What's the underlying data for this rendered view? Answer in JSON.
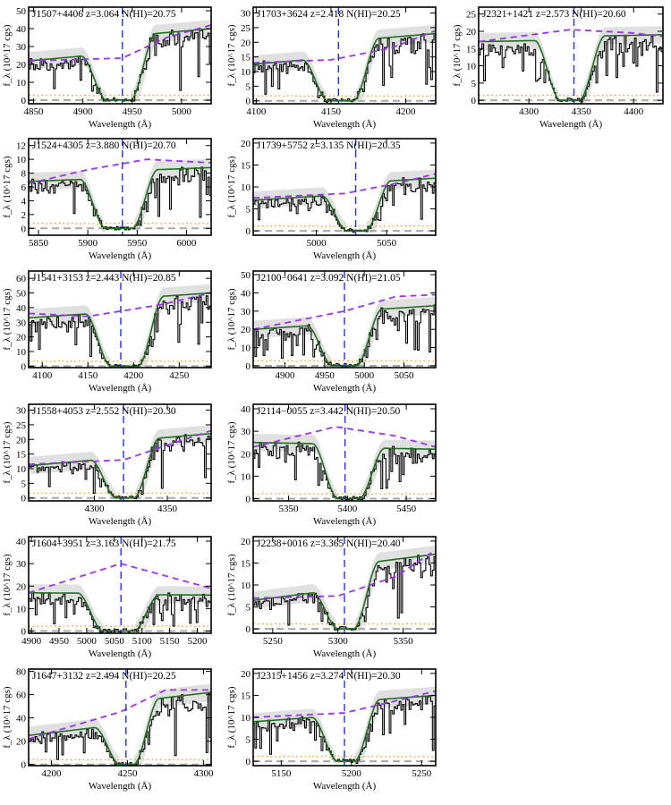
{
  "figure": {
    "xlabel": "Wavelength (Å)",
    "ylabel": "f_λ (10^17 cgs)"
  },
  "colors": {
    "flux": "#000000",
    "model": "#1f6f1f",
    "model_uncertainty_band": "#cfcfcf",
    "continuum": "#9933ee",
    "error": "#f0a030",
    "zero_level": "#a8a8a8",
    "absorber_redshift": "#2030e0"
  },
  "chart_data": [
    {
      "type": "line",
      "title": "J1507+4406 z=3.064 N(HI)=20.75",
      "xlim": [
        4845,
        5030
      ],
      "ylim": [
        -2,
        52
      ],
      "xticks": [
        4850,
        4900,
        4950,
        5000
      ],
      "yticks": [
        0,
        10,
        20,
        30,
        40,
        50
      ],
      "z_line_x": 4940,
      "trough": [
        4924,
        4948
      ],
      "model_left": 22,
      "model_right": 40,
      "continuum": [
        [
          4845,
          22
        ],
        [
          4940,
          23.5
        ],
        [
          4985,
          35
        ],
        [
          5030,
          42
        ]
      ],
      "grid": false
    },
    {
      "type": "line",
      "title": "J1703+3624 z=2.418 N(HI)=20.25",
      "xlim": [
        4098,
        4220
      ],
      "ylim": [
        -1,
        32
      ],
      "xticks": [
        4100,
        4150,
        4200
      ],
      "yticks": [
        0,
        5,
        10,
        15,
        20,
        25,
        30
      ],
      "z_line_x": 4155,
      "trough": [
        4148,
        4165
      ],
      "model_left": 12.5,
      "model_right": 23,
      "continuum": [
        [
          4098,
          13
        ],
        [
          4150,
          14
        ],
        [
          4190,
          18
        ],
        [
          4220,
          24
        ]
      ],
      "grid": false
    },
    {
      "type": "line",
      "title": "J2321+1421 z=2.573 N(HI)=20.60",
      "xlim": [
        4252,
        4428
      ],
      "ylim": [
        -1,
        27
      ],
      "xticks": [
        4300,
        4350,
        4400
      ],
      "yticks": [
        0,
        5,
        10,
        15,
        20,
        25
      ],
      "z_line_x": 4343,
      "trough": [
        4330,
        4348
      ],
      "model_left": 17,
      "model_right": 19,
      "continuum": [
        [
          4252,
          17
        ],
        [
          4340,
          20.5
        ],
        [
          4400,
          19.5
        ],
        [
          4428,
          18.5
        ]
      ],
      "grid": false
    },
    {
      "type": "line",
      "title": "J1524+4305 z=3.880 N(HI)=20.70",
      "xlim": [
        5840,
        6025
      ],
      "ylim": [
        -1,
        13
      ],
      "xticks": [
        5850,
        5900,
        5950,
        6000
      ],
      "yticks": [
        0,
        2,
        4,
        6,
        8,
        10,
        12
      ],
      "z_line_x": 5935,
      "trough": [
        5918,
        5945
      ],
      "model_left": 6.8,
      "model_right": 8.8,
      "continuum": [
        [
          5840,
          6.5
        ],
        [
          5900,
          8.5
        ],
        [
          5960,
          10
        ],
        [
          6025,
          9.5
        ]
      ],
      "grid": false
    },
    {
      "type": "line",
      "title": "J1739+5752 z=3.135 N(HI)=20.35",
      "xlim": [
        4955,
        5085
      ],
      "ylim": [
        -1,
        21
      ],
      "xticks": [
        5000,
        5050
      ],
      "yticks": [
        0,
        5,
        10,
        15,
        20
      ],
      "z_line_x": 5028,
      "trough": [
        5022,
        5035
      ],
      "model_left": 7,
      "model_right": 12,
      "continuum": [
        [
          4955,
          7.5
        ],
        [
          5020,
          8.5
        ],
        [
          5060,
          11
        ],
        [
          5085,
          13
        ]
      ],
      "grid": false
    },
    {
      "type": "line",
      "title": "J1541+3153 z=2.443 N(HI)=20.85",
      "xlim": [
        4085,
        4285
      ],
      "ylim": [
        -1,
        65
      ],
      "xticks": [
        4100,
        4150,
        4200,
        4250
      ],
      "yticks": [
        0,
        10,
        20,
        30,
        40,
        50,
        60
      ],
      "z_line_x": 4186,
      "trough": [
        4175,
        4205
      ],
      "model_left": 33,
      "model_right": 50,
      "continuum": [
        [
          4085,
          36
        ],
        [
          4150,
          34
        ],
        [
          4230,
          42
        ],
        [
          4285,
          50
        ]
      ],
      "grid": false
    },
    {
      "type": "line",
      "title": "J2100−0641 z=3.092 N(HI)=21.05",
      "xlim": [
        4860,
        5090
      ],
      "ylim": [
        -1,
        52
      ],
      "xticks": [
        4900,
        4950,
        5000,
        5050
      ],
      "yticks": [
        0,
        10,
        20,
        30,
        40,
        50
      ],
      "z_line_x": 4975,
      "trough": [
        4960,
        4990
      ],
      "model_left": 20,
      "model_right": 33,
      "continuum": [
        [
          4860,
          20
        ],
        [
          4975,
          30
        ],
        [
          5040,
          38
        ],
        [
          5090,
          39
        ]
      ],
      "grid": false
    },
    {
      "type": "line",
      "title": "J1558+4053 z=2.552 N(HI)=20.30",
      "xlim": [
        4255,
        4380
      ],
      "ylim": [
        -1,
        32
      ],
      "xticks": [
        4300,
        4350
      ],
      "yticks": [
        0,
        5,
        10,
        15,
        20,
        25,
        30
      ],
      "z_line_x": 4320,
      "trough": [
        4315,
        4327
      ],
      "model_left": 11,
      "model_right": 22,
      "continuum": [
        [
          4255,
          11.5
        ],
        [
          4320,
          13
        ],
        [
          4350,
          18
        ],
        [
          4380,
          23
        ]
      ],
      "grid": false
    },
    {
      "type": "line",
      "title": "J2114−0055 z=3.442 N(HI)=20.50",
      "xlim": [
        5320,
        5475
      ],
      "ylim": [
        -1,
        42
      ],
      "xticks": [
        5350,
        5400,
        5450
      ],
      "yticks": [
        0,
        10,
        20,
        30,
        40
      ],
      "z_line_x": 5398,
      "trough": [
        5392,
        5410
      ],
      "model_left": 25,
      "model_right": 22,
      "continuum": [
        [
          5320,
          23
        ],
        [
          5390,
          32
        ],
        [
          5440,
          28
        ],
        [
          5475,
          23
        ]
      ],
      "grid": false
    },
    {
      "type": "line",
      "title": "J1604+3951 z=3.163 N(HI)=21.75",
      "xlim": [
        4895,
        5225
      ],
      "ylim": [
        -1,
        42
      ],
      "xticks": [
        4900,
        4950,
        5000,
        5050,
        5100,
        5150,
        5200
      ],
      "yticks": [
        0,
        10,
        20,
        30,
        40
      ],
      "z_line_x": 5062,
      "trough": [
        5030,
        5085
      ],
      "model_left": 17,
      "model_right": 16,
      "continuum": [
        [
          4895,
          17
        ],
        [
          5062,
          30
        ],
        [
          5180,
          22
        ],
        [
          5225,
          19
        ]
      ],
      "grid": false
    },
    {
      "type": "line",
      "title": "J2238+0016 z=3.365 N(HI)=20.40",
      "xlim": [
        5235,
        5375
      ],
      "ylim": [
        -1,
        21
      ],
      "xticks": [
        5250,
        5300,
        5350
      ],
      "yticks": [
        0,
        5,
        10,
        15,
        20
      ],
      "z_line_x": 5305,
      "trough": [
        5300,
        5312
      ],
      "model_left": 6.5,
      "model_right": 17,
      "continuum": [
        [
          5235,
          7
        ],
        [
          5300,
          7.5
        ],
        [
          5345,
          12
        ],
        [
          5375,
          18
        ]
      ],
      "grid": false
    },
    {
      "type": "line",
      "title": "J1647+3132 z=2.494 N(HI)=20.25",
      "xlim": [
        4185,
        4305
      ],
      "ylim": [
        -1,
        82
      ],
      "xticks": [
        4200,
        4250,
        4300
      ],
      "yticks": [
        0,
        20,
        40,
        60,
        80
      ],
      "z_line_x": 4249,
      "trough": [
        4245,
        4254
      ],
      "model_left": 25,
      "model_right": 62,
      "continuum": [
        [
          4185,
          22
        ],
        [
          4245,
          45
        ],
        [
          4275,
          64
        ],
        [
          4305,
          64
        ]
      ],
      "grid": false
    },
    {
      "type": "line",
      "title": "J2315+1456 z=3.274 N(HI)=20.30",
      "xlim": [
        5130,
        5260
      ],
      "ylim": [
        -1,
        21
      ],
      "xticks": [
        5150,
        5200,
        5250
      ],
      "yticks": [
        0,
        5,
        10,
        15,
        20
      ],
      "z_line_x": 5195,
      "trough": [
        5190,
        5202
      ],
      "model_left": 9,
      "model_right": 15,
      "continuum": [
        [
          5130,
          10
        ],
        [
          5195,
          11
        ],
        [
          5235,
          14
        ],
        [
          5260,
          16
        ]
      ],
      "grid": false
    }
  ]
}
